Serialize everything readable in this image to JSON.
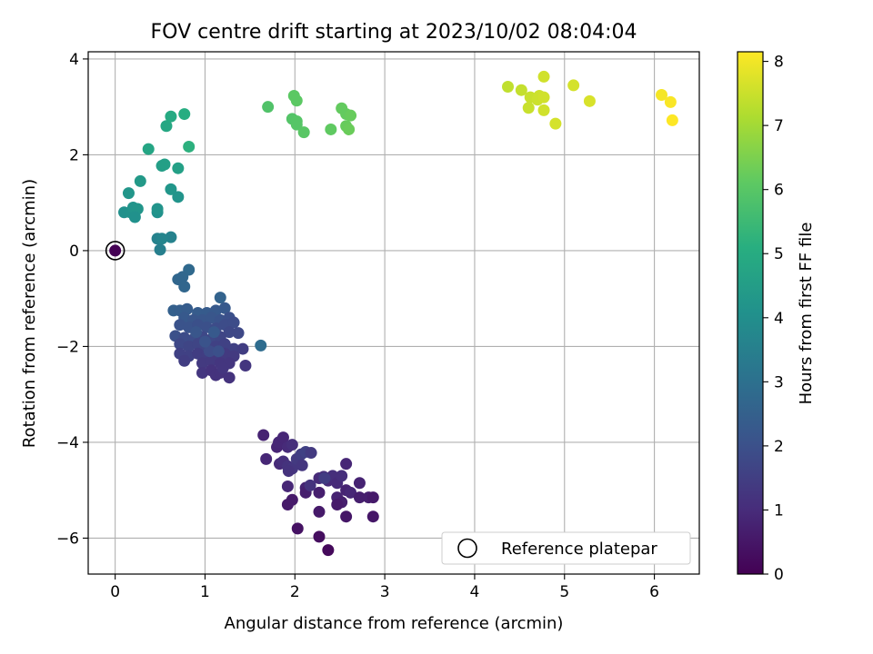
{
  "chart_data": {
    "type": "scatter",
    "title": "FOV centre drift starting at 2023/10/02 08:04:04",
    "xlabel": "Angular distance from reference (arcmin)",
    "ylabel": "Rotation from reference (arcmin)",
    "xlim": [
      -0.3,
      6.5
    ],
    "ylim": [
      -6.75,
      4.15
    ],
    "xticks": [
      0,
      1,
      2,
      3,
      4,
      5,
      6
    ],
    "yticks": [
      -6,
      -4,
      -2,
      0,
      2,
      4
    ],
    "grid": true,
    "legend": {
      "placement": "lower-right",
      "entries": [
        "Reference platepar"
      ]
    },
    "colorbar": {
      "label": "Hours from first FF file",
      "range": [
        0,
        8.15
      ],
      "ticks": [
        0,
        1,
        2,
        3,
        4,
        5,
        6,
        7,
        8
      ],
      "colormap": "viridis"
    },
    "reference_point": {
      "x": 0,
      "y": 0
    },
    "series": [
      {
        "columns": [
          "x",
          "y",
          "hours"
        ],
        "points": [
          [
            0.0,
            0.0,
            0.0
          ],
          [
            1.65,
            -3.85,
            0.8
          ],
          [
            1.8,
            -4.1,
            0.85
          ],
          [
            1.82,
            -4.0,
            0.9
          ],
          [
            1.87,
            -3.9,
            0.9
          ],
          [
            1.92,
            -4.1,
            1.0
          ],
          [
            1.97,
            -4.05,
            1.1
          ],
          [
            1.68,
            -4.35,
            0.9
          ],
          [
            1.83,
            -4.45,
            1.0
          ],
          [
            1.87,
            -4.4,
            1.1
          ],
          [
            1.92,
            -4.5,
            1.2
          ],
          [
            1.97,
            -4.55,
            1.3
          ],
          [
            2.02,
            -4.35,
            1.4
          ],
          [
            2.07,
            -4.25,
            1.5
          ],
          [
            2.12,
            -4.2,
            1.6
          ],
          [
            1.93,
            -4.6,
            1.2
          ],
          [
            2.08,
            -4.48,
            1.3
          ],
          [
            2.18,
            -4.22,
            1.4
          ],
          [
            1.92,
            -4.92,
            0.9
          ],
          [
            2.12,
            -4.95,
            0.8
          ],
          [
            2.12,
            -5.05,
            0.7
          ],
          [
            2.27,
            -4.75,
            1.0
          ],
          [
            2.32,
            -4.72,
            1.1
          ],
          [
            2.37,
            -4.8,
            1.0
          ],
          [
            2.42,
            -4.7,
            1.1
          ],
          [
            2.47,
            -4.85,
            1.0
          ],
          [
            2.52,
            -4.7,
            1.1
          ],
          [
            2.57,
            -4.45,
            0.9
          ],
          [
            2.27,
            -5.05,
            0.7
          ],
          [
            2.47,
            -5.15,
            0.8
          ],
          [
            2.52,
            -5.25,
            0.7
          ],
          [
            2.57,
            -5.0,
            0.8
          ],
          [
            2.62,
            -5.05,
            0.9
          ],
          [
            2.72,
            -4.85,
            0.8
          ],
          [
            2.72,
            -5.15,
            0.7
          ],
          [
            2.82,
            -5.15,
            0.7
          ],
          [
            2.87,
            -5.15,
            0.6
          ],
          [
            1.92,
            -5.3,
            0.6
          ],
          [
            1.97,
            -5.2,
            0.6
          ],
          [
            2.27,
            -5.45,
            0.6
          ],
          [
            2.47,
            -5.3,
            0.6
          ],
          [
            2.57,
            -5.55,
            0.5
          ],
          [
            2.87,
            -5.55,
            0.5
          ],
          [
            2.03,
            -5.8,
            0.4
          ],
          [
            2.27,
            -5.97,
            0.3
          ],
          [
            2.37,
            -6.25,
            0.2
          ],
          [
            2.33,
            -4.75,
            1.5
          ],
          [
            2.17,
            -4.9,
            1.2
          ],
          [
            0.82,
            -0.4,
            2.8
          ],
          [
            0.75,
            -0.55,
            2.75
          ],
          [
            0.7,
            -0.6,
            2.7
          ],
          [
            0.77,
            -0.75,
            2.7
          ],
          [
            1.17,
            -0.98,
            2.6
          ],
          [
            0.65,
            -1.25,
            2.5
          ],
          [
            0.72,
            -1.25,
            2.45
          ],
          [
            0.8,
            -1.22,
            2.4
          ],
          [
            0.92,
            -1.3,
            2.4
          ],
          [
            1.02,
            -1.3,
            2.35
          ],
          [
            1.12,
            -1.25,
            2.3
          ],
          [
            1.22,
            -1.2,
            2.3
          ],
          [
            0.77,
            -1.4,
            2.3
          ],
          [
            0.87,
            -1.45,
            2.2
          ],
          [
            0.97,
            -1.45,
            2.2
          ],
          [
            1.07,
            -1.4,
            2.2
          ],
          [
            1.17,
            -1.45,
            2.1
          ],
          [
            1.27,
            -1.4,
            2.0
          ],
          [
            0.72,
            -1.55,
            2.1
          ],
          [
            0.82,
            -1.6,
            2.1
          ],
          [
            0.92,
            -1.55,
            2.0
          ],
          [
            1.02,
            -1.6,
            2.0
          ],
          [
            1.12,
            -1.62,
            1.9
          ],
          [
            1.22,
            -1.55,
            1.9
          ],
          [
            1.32,
            -1.5,
            1.9
          ],
          [
            1.62,
            -1.98,
            2.9
          ],
          [
            1.27,
            -1.7,
            1.8
          ],
          [
            1.37,
            -1.72,
            1.8
          ],
          [
            0.67,
            -1.78,
            2.0
          ],
          [
            0.77,
            -1.82,
            1.9
          ],
          [
            0.87,
            -1.85,
            1.9
          ],
          [
            0.97,
            -1.8,
            1.8
          ],
          [
            1.07,
            -1.85,
            1.8
          ],
          [
            1.17,
            -1.8,
            1.7
          ],
          [
            0.72,
            -1.95,
            1.8
          ],
          [
            0.82,
            -2.0,
            1.7
          ],
          [
            0.92,
            -1.95,
            1.7
          ],
          [
            1.02,
            -2.05,
            1.7
          ],
          [
            1.12,
            -2.0,
            1.6
          ],
          [
            1.22,
            -1.95,
            1.6
          ],
          [
            1.32,
            -2.05,
            1.6
          ],
          [
            1.42,
            -2.05,
            1.5
          ],
          [
            0.72,
            -2.15,
            1.6
          ],
          [
            0.82,
            -2.2,
            1.6
          ],
          [
            0.92,
            -2.15,
            1.5
          ],
          [
            1.02,
            -2.2,
            1.5
          ],
          [
            1.12,
            -2.25,
            1.5
          ],
          [
            1.22,
            -2.15,
            1.4
          ],
          [
            1.32,
            -2.2,
            1.4
          ],
          [
            0.77,
            -2.3,
            1.5
          ],
          [
            0.97,
            -2.35,
            1.4
          ],
          [
            1.07,
            -2.3,
            1.4
          ],
          [
            1.17,
            -2.35,
            1.3
          ],
          [
            1.27,
            -2.35,
            1.3
          ],
          [
            1.45,
            -2.4,
            1.3
          ],
          [
            0.97,
            -2.55,
            1.3
          ],
          [
            1.07,
            -2.5,
            1.2
          ],
          [
            1.12,
            -2.6,
            1.2
          ],
          [
            1.17,
            -2.55,
            1.2
          ],
          [
            1.27,
            -2.65,
            1.2
          ],
          [
            1.2,
            -2.45,
            1.3
          ],
          [
            1.05,
            -2.1,
            1.9
          ],
          [
            1.15,
            -2.1,
            2.0
          ],
          [
            1.0,
            -1.9,
            2.1
          ],
          [
            0.9,
            -1.7,
            2.2
          ],
          [
            1.1,
            -1.7,
            2.3
          ],
          [
            0.62,
            0.28,
            3.6
          ],
          [
            0.47,
            0.25,
            3.6
          ],
          [
            0.52,
            0.25,
            3.7
          ],
          [
            0.5,
            0.02,
            3.5
          ],
          [
            0.1,
            0.8,
            4.1
          ],
          [
            0.17,
            0.8,
            4.15
          ],
          [
            0.2,
            0.9,
            4.2
          ],
          [
            0.25,
            0.87,
            4.25
          ],
          [
            0.22,
            0.7,
            4.1
          ],
          [
            0.47,
            0.8,
            4.1
          ],
          [
            0.47,
            0.87,
            4.2
          ],
          [
            0.15,
            1.2,
            4.3
          ],
          [
            0.28,
            1.45,
            4.4
          ],
          [
            0.62,
            1.28,
            4.3
          ],
          [
            0.7,
            1.12,
            4.2
          ],
          [
            0.52,
            1.77,
            4.55
          ],
          [
            0.55,
            1.8,
            4.6
          ],
          [
            0.7,
            1.72,
            4.65
          ],
          [
            0.37,
            2.12,
            4.8
          ],
          [
            0.57,
            2.6,
            4.9
          ],
          [
            0.62,
            2.8,
            5.0
          ],
          [
            0.77,
            2.85,
            5.1
          ],
          [
            0.82,
            2.17,
            5.2
          ],
          [
            1.7,
            3.0,
            5.9
          ],
          [
            1.97,
            2.75,
            5.95
          ],
          [
            2.02,
            2.7,
            6.0
          ],
          [
            2.02,
            2.63,
            6.0
          ],
          [
            2.1,
            2.47,
            6.05
          ],
          [
            1.99,
            3.23,
            6.1
          ],
          [
            2.02,
            3.13,
            6.1
          ],
          [
            2.4,
            2.53,
            6.15
          ],
          [
            2.52,
            2.97,
            6.2
          ],
          [
            2.57,
            2.85,
            6.2
          ],
          [
            2.62,
            2.82,
            6.25
          ],
          [
            2.57,
            2.6,
            6.25
          ],
          [
            2.6,
            2.53,
            6.3
          ],
          [
            4.37,
            3.42,
            7.4
          ],
          [
            4.52,
            3.35,
            7.45
          ],
          [
            4.62,
            3.2,
            7.5
          ],
          [
            4.6,
            2.98,
            7.5
          ],
          [
            4.7,
            3.15,
            7.55
          ],
          [
            4.72,
            3.23,
            7.55
          ],
          [
            4.77,
            3.2,
            7.6
          ],
          [
            4.77,
            2.93,
            7.6
          ],
          [
            4.77,
            3.63,
            7.6
          ],
          [
            4.9,
            2.65,
            7.65
          ],
          [
            5.1,
            3.45,
            7.65
          ],
          [
            5.28,
            3.12,
            7.7
          ],
          [
            6.08,
            3.25,
            8.05
          ],
          [
            6.18,
            3.1,
            8.1
          ],
          [
            6.2,
            2.72,
            8.15
          ]
        ]
      }
    ]
  }
}
